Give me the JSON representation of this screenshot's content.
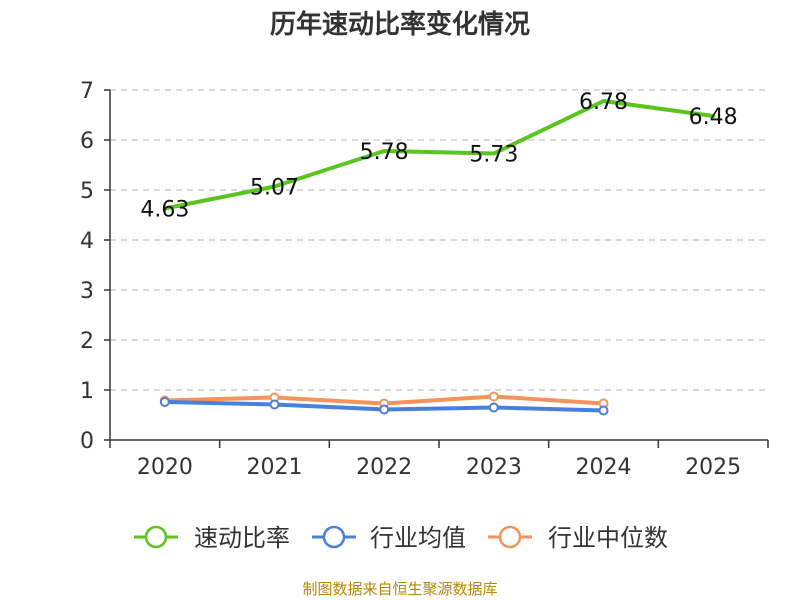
{
  "chart_data": {
    "type": "line",
    "title": "历年速动比率变化情况",
    "xlabel": "",
    "ylabel": "",
    "categories": [
      "2020",
      "2021",
      "2022",
      "2023",
      "2024",
      "2025"
    ],
    "ylim": [
      0,
      7
    ],
    "yticks": [
      0,
      1,
      2,
      3,
      4,
      5,
      6,
      7
    ],
    "grid": true,
    "legend_position": "bottom",
    "series": [
      {
        "name": "速动比率",
        "color": "#5cc41e",
        "values": [
          4.63,
          5.07,
          5.78,
          5.73,
          6.78,
          6.48
        ],
        "data_labels": [
          "4.63",
          "5.07",
          "5.78",
          "5.73",
          "6.78",
          "6.48"
        ],
        "show_markers": false
      },
      {
        "name": "行业均值",
        "color": "#4a7fdc",
        "values": [
          0.76,
          0.71,
          0.61,
          0.65,
          0.59,
          null
        ],
        "show_markers": true
      },
      {
        "name": "行业中位数",
        "color": "#f5935b",
        "values": [
          0.79,
          0.85,
          0.73,
          0.87,
          0.73,
          null
        ],
        "show_markers": true
      }
    ]
  },
  "footer": {
    "source": "制图数据来自恒生聚源数据库"
  }
}
